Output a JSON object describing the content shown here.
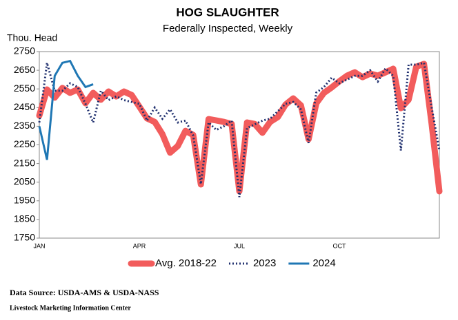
{
  "chart_data": {
    "type": "line",
    "title": "HOG SLAUGHTER",
    "subtitle": "Federally Inspected, Weekly",
    "y_label": "Thou. Head",
    "categories": [
      "JAN",
      null,
      null,
      null,
      null,
      null,
      null,
      null,
      null,
      null,
      null,
      null,
      null,
      "APR",
      null,
      null,
      null,
      null,
      null,
      null,
      null,
      null,
      null,
      null,
      null,
      null,
      "JUL",
      null,
      null,
      null,
      null,
      null,
      null,
      null,
      null,
      null,
      null,
      null,
      null,
      "OCT",
      null,
      null,
      null,
      null,
      null,
      null,
      null,
      null,
      null,
      null,
      null,
      null,
      null
    ],
    "series": [
      {
        "name": "Avg. 2018-22",
        "color": "#f25c5c",
        "style": "thick",
        "values": [
          2407,
          2547,
          2503,
          2555,
          2529,
          2547,
          2473,
          2529,
          2492,
          2536,
          2510,
          2536,
          2517,
          2455,
          2392,
          2373,
          2307,
          2208,
          2244,
          2325,
          2303,
          2038,
          2388,
          2381,
          2373,
          2362,
          2001,
          2370,
          2362,
          2315,
          2373,
          2399,
          2466,
          2499,
          2462,
          2280,
          2473,
          2529,
          2558,
          2591,
          2621,
          2639,
          2613,
          2632,
          2621,
          2639,
          2658,
          2447,
          2492,
          2669,
          2684,
          2362,
          2001
        ]
      },
      {
        "name": "2023",
        "color": "#1f2f6e",
        "style": "dotted",
        "values": [
          2370,
          2690,
          2540,
          2540,
          2580,
          2560,
          2470,
          2370,
          2540,
          2490,
          2510,
          2490,
          2480,
          2470,
          2380,
          2450,
          2390,
          2440,
          2370,
          2380,
          2300,
          2040,
          2370,
          2330,
          2350,
          2380,
          1970,
          2340,
          2360,
          2380,
          2390,
          2430,
          2470,
          2480,
          2440,
          2260,
          2530,
          2560,
          2610,
          2580,
          2600,
          2620,
          2620,
          2650,
          2590,
          2660,
          2620,
          2220,
          2680,
          2680,
          2690,
          2450,
          2220
        ]
      },
      {
        "name": "2024",
        "color": "#1f77b4",
        "style": "solid",
        "values": [
          2350,
          2170,
          2620,
          2690,
          2700,
          2620,
          2560,
          2575,
          null,
          null,
          null,
          null,
          null,
          null,
          null,
          null,
          null,
          null,
          null,
          null,
          null,
          null,
          null,
          null,
          null,
          null,
          null,
          null,
          null,
          null,
          null,
          null,
          null,
          null,
          null,
          null,
          null,
          null,
          null,
          null,
          null,
          null,
          null,
          null,
          null,
          null,
          null,
          null,
          null,
          null,
          null,
          null,
          null
        ]
      }
    ],
    "ylim": [
      1750,
      2750
    ],
    "yticks": [
      1750,
      1850,
      1950,
      2050,
      2150,
      2250,
      2350,
      2450,
      2550,
      2650,
      2750
    ]
  },
  "footer": {
    "source": "Data Source:  USDA-AMS & USDA-NASS",
    "org": "Livestock Marketing Information  Center"
  }
}
